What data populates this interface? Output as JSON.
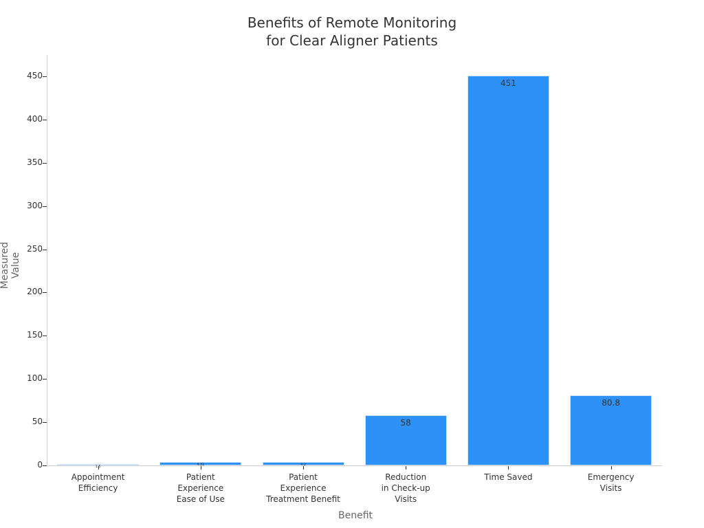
{
  "chart_data": {
    "type": "bar",
    "title": "Benefits of Remote Monitoring\nfor Clear Aligner Patients",
    "title_lines": [
      "Benefits of Remote Monitoring",
      "for Clear Aligner Patients"
    ],
    "xlabel": "Benefit",
    "ylabel": "Measured Value",
    "categories": [
      "Appointment\nEfficiency",
      "Patient\nExperience\nEase of Use",
      "Patient\nExperience\nTreatment Benefit",
      "Reduction\nin Check-up\nVisits",
      "Time Saved",
      "Emergency\nVisits"
    ],
    "values": [
      1.5,
      4.31,
      4.2,
      58,
      451,
      80.8
    ],
    "value_labels": [
      "1.5",
      "4.31",
      "4.2",
      "58",
      "451",
      "80.8"
    ],
    "ylim": [
      0,
      475
    ],
    "yticks": [
      0,
      50,
      100,
      150,
      200,
      250,
      300,
      350,
      400,
      450
    ],
    "grid": false,
    "legend": null,
    "bar_color": "#2e91f7"
  }
}
